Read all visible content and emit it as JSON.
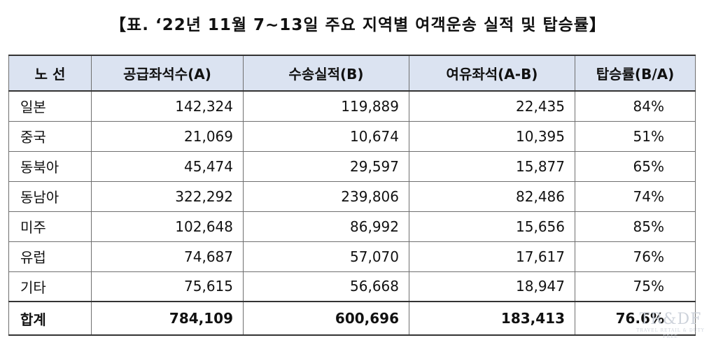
{
  "title": "【표. ‘22년 11월 7~13일 주요 지역별 여객운송 실적 및 탑승률】",
  "table": {
    "headers": [
      "노 선",
      "공급좌석수(A)",
      "수송실적(B)",
      "여유좌석(A-B)",
      "탑승률(B/A)"
    ],
    "rows": [
      [
        "일본",
        "142,324",
        "119,889",
        "22,435",
        "84%"
      ],
      [
        "중국",
        "21,069",
        "10,674",
        "10,395",
        "51%"
      ],
      [
        "동북아",
        "45,474",
        "29,597",
        "15,877",
        "65%"
      ],
      [
        "동남아",
        "322,292",
        "239,806",
        "82,486",
        "74%"
      ],
      [
        "미주",
        "102,648",
        "86,992",
        "15,656",
        "85%"
      ],
      [
        "유럽",
        "74,687",
        "57,070",
        "17,617",
        "76%"
      ],
      [
        "기타",
        "75,615",
        "56,668",
        "18,947",
        "75%"
      ]
    ],
    "total": [
      "합계",
      "784,109",
      "600,696",
      "183,413",
      "76.6%"
    ]
  },
  "watermark": {
    "main": "TR&DF",
    "sub": "TRAVEL RETAIL & DUTY FREE"
  },
  "colors": {
    "header_background": "#dbe3f1",
    "border": "#6f6f6f",
    "watermark": "#c9cfd8"
  }
}
